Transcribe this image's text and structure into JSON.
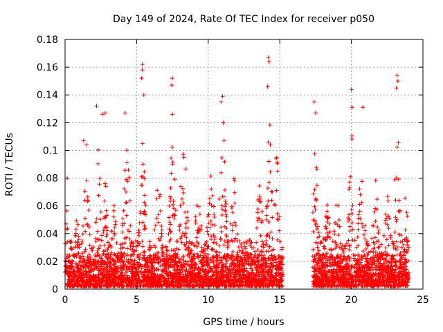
{
  "chart_data": {
    "type": "scatter",
    "title": "Day 149 of 2024, Rate Of TEC Index for receiver p050",
    "xlabel": "GPS time / hours",
    "ylabel": "ROTI / TECUs",
    "xlim": [
      0,
      25
    ],
    "ylim": [
      0,
      0.18
    ],
    "xticks": [
      0,
      5,
      10,
      15,
      20,
      25
    ],
    "yticks": [
      0,
      0.02,
      0.04,
      0.06,
      0.08,
      0.1,
      0.12,
      0.14,
      0.16,
      0.18
    ],
    "xtick_labels": [
      "0",
      "5",
      "10",
      "15",
      "20",
      "25"
    ],
    "ytick_labels": [
      "0",
      "0.02",
      "0.04",
      "0.06",
      "0.08",
      "0.1",
      "0.12",
      "0.14",
      "0.16",
      "0.18"
    ],
    "grid": true,
    "marker": "+",
    "color": "#ff0000",
    "data_gap_hours": [
      15.2,
      17.3
    ],
    "series": [
      {
        "name": "ROTI",
        "notable_points": [
          {
            "x": 0.15,
            "y": 0.08
          },
          {
            "x": 1.3,
            "y": 0.107
          },
          {
            "x": 1.5,
            "y": 0.104
          },
          {
            "x": 2.2,
            "y": 0.132
          },
          {
            "x": 2.6,
            "y": 0.126
          },
          {
            "x": 2.8,
            "y": 0.127
          },
          {
            "x": 4.2,
            "y": 0.127
          },
          {
            "x": 5.4,
            "y": 0.162
          },
          {
            "x": 5.4,
            "y": 0.158
          },
          {
            "x": 5.35,
            "y": 0.152
          },
          {
            "x": 5.5,
            "y": 0.14
          },
          {
            "x": 7.5,
            "y": 0.152
          },
          {
            "x": 7.45,
            "y": 0.147
          },
          {
            "x": 7.5,
            "y": 0.126
          },
          {
            "x": 11.0,
            "y": 0.139
          },
          {
            "x": 10.9,
            "y": 0.135
          },
          {
            "x": 14.2,
            "y": 0.167
          },
          {
            "x": 14.25,
            "y": 0.164
          },
          {
            "x": 14.15,
            "y": 0.146
          },
          {
            "x": 17.4,
            "y": 0.135
          },
          {
            "x": 17.5,
            "y": 0.127
          },
          {
            "x": 20.0,
            "y": 0.144
          },
          {
            "x": 20.05,
            "y": 0.131
          },
          {
            "x": 20.8,
            "y": 0.131
          },
          {
            "x": 23.2,
            "y": 0.154
          },
          {
            "x": 23.25,
            "y": 0.15
          },
          {
            "x": 23.15,
            "y": 0.145
          }
        ],
        "bursts": [
          {
            "center": 0.15,
            "width": 0.15,
            "peak": 0.06
          },
          {
            "center": 0.8,
            "width": 0.3,
            "peak": 0.047
          },
          {
            "center": 1.5,
            "width": 0.3,
            "peak": 0.08
          },
          {
            "center": 2.3,
            "width": 0.25,
            "peak": 0.1
          },
          {
            "center": 2.8,
            "width": 0.25,
            "peak": 0.085
          },
          {
            "center": 3.4,
            "width": 0.3,
            "peak": 0.06
          },
          {
            "center": 4.3,
            "width": 0.3,
            "peak": 0.11
          },
          {
            "center": 5.4,
            "width": 0.3,
            "peak": 0.1
          },
          {
            "center": 6.5,
            "width": 0.35,
            "peak": 0.075
          },
          {
            "center": 7.5,
            "width": 0.3,
            "peak": 0.1
          },
          {
            "center": 8.3,
            "width": 0.35,
            "peak": 0.1
          },
          {
            "center": 9.3,
            "width": 0.35,
            "peak": 0.065
          },
          {
            "center": 10.2,
            "width": 0.35,
            "peak": 0.08
          },
          {
            "center": 11.0,
            "width": 0.3,
            "peak": 0.12
          },
          {
            "center": 11.8,
            "width": 0.3,
            "peak": 0.08
          },
          {
            "center": 12.8,
            "width": 0.3,
            "peak": 0.035
          },
          {
            "center": 13.6,
            "width": 0.3,
            "peak": 0.07
          },
          {
            "center": 14.3,
            "width": 0.25,
            "peak": 0.12
          },
          {
            "center": 14.8,
            "width": 0.25,
            "peak": 0.1
          },
          {
            "center": 17.5,
            "width": 0.25,
            "peak": 0.1
          },
          {
            "center": 18.3,
            "width": 0.3,
            "peak": 0.06
          },
          {
            "center": 19.0,
            "width": 0.3,
            "peak": 0.06
          },
          {
            "center": 20.0,
            "width": 0.25,
            "peak": 0.11
          },
          {
            "center": 20.7,
            "width": 0.3,
            "peak": 0.09
          },
          {
            "center": 21.7,
            "width": 0.3,
            "peak": 0.08
          },
          {
            "center": 22.5,
            "width": 0.35,
            "peak": 0.065
          },
          {
            "center": 23.2,
            "width": 0.25,
            "peak": 0.12
          },
          {
            "center": 23.8,
            "width": 0.2,
            "peak": 0.065
          }
        ],
        "baseline_range": [
          0.002,
          0.025
        ],
        "coverage": [
          [
            0,
            15.2
          ],
          [
            17.3,
            24.0
          ]
        ]
      }
    ]
  }
}
